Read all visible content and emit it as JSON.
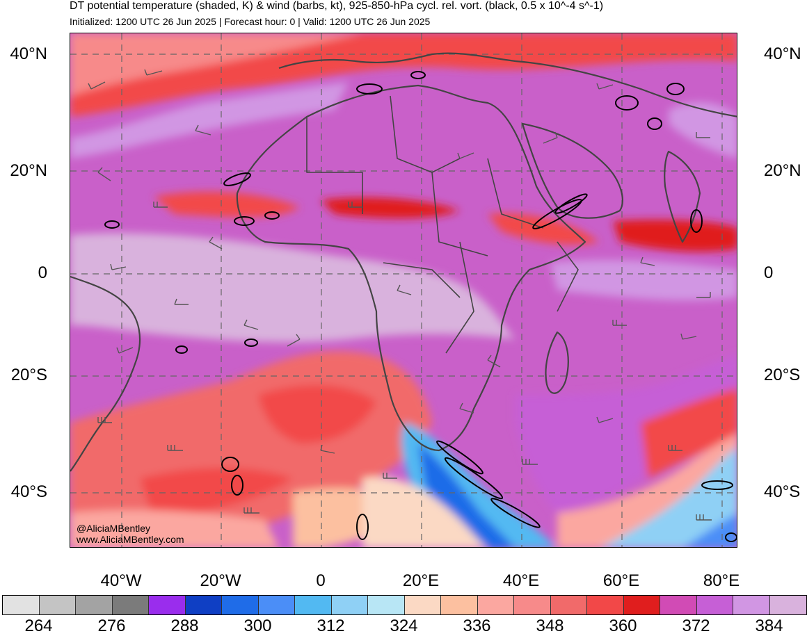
{
  "header": {
    "title": "DT potential temperature (shaded, K) & wind (barbs, kt), 925-850-hPa cycl. rel. vort. (black, 0.5 x 10^-4 s^-1)",
    "subtitle": "Initialized: 1200 UTC 26 Jun 2025 | Forecast hour: 0 | Valid: 1200 UTC 26 Jun 2025"
  },
  "map": {
    "lat_labels": [
      "40°N",
      "20°N",
      "0",
      "20°S",
      "40°S"
    ],
    "lon_labels": [
      "40°W",
      "20°W",
      "0",
      "20°E",
      "40°E",
      "60°E",
      "80°E"
    ],
    "watermark_handle": "@AliciaMBentley",
    "watermark_site": "www.AliciaMBentley.com"
  },
  "colorbar": {
    "colors": [
      "#e2e2e2",
      "#c4c4c4",
      "#a3a3a3",
      "#7b7b7b",
      "#9a2ded",
      "#0f3fc4",
      "#1f6ce8",
      "#4b8ef7",
      "#52b9f2",
      "#8fd0f5",
      "#b8e6f5",
      "#fbd9c4",
      "#fcc0a0",
      "#fba7a0",
      "#f78a8a",
      "#f16a6a",
      "#f24848",
      "#e01e1e",
      "#d14bb5",
      "#c65fd6",
      "#d196e3",
      "#d9b2dd"
    ],
    "labels": [
      "264",
      "276",
      "288",
      "300",
      "312",
      "324",
      "336",
      "348",
      "360",
      "372",
      "384"
    ]
  }
}
